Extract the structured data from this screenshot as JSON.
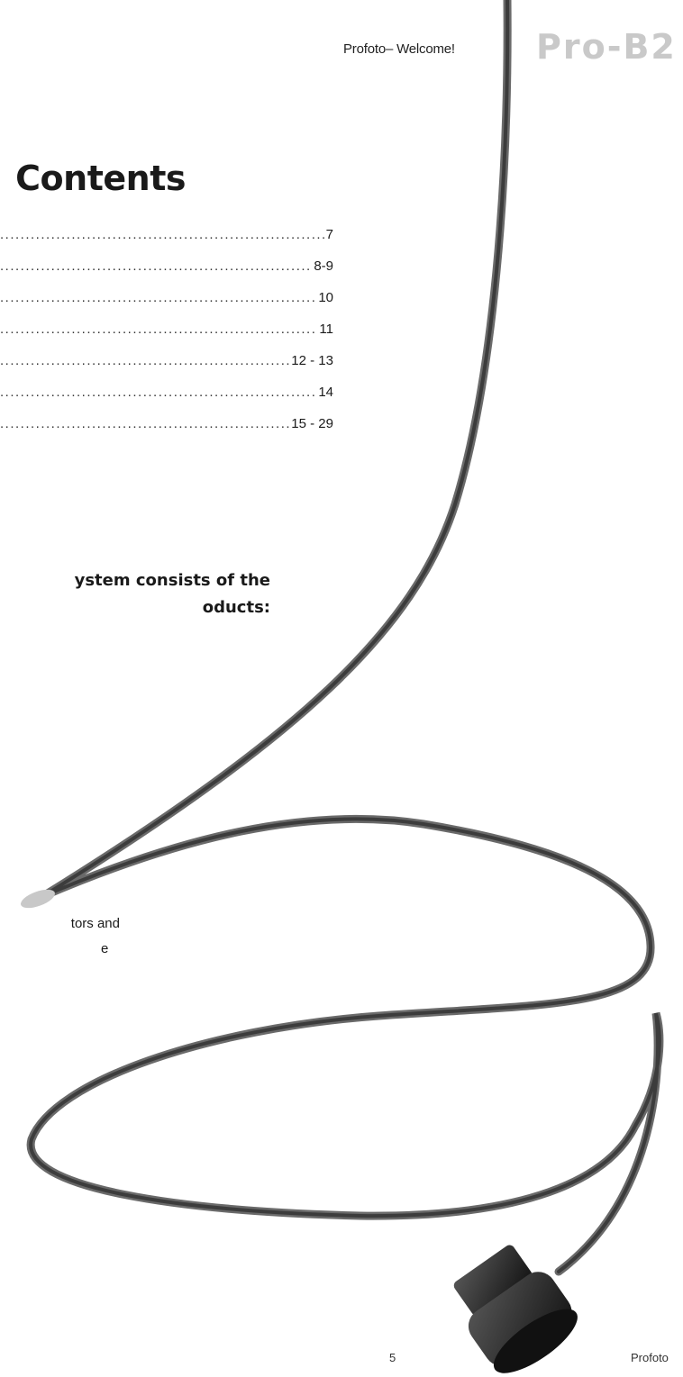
{
  "header": {
    "section": "Profoto– Welcome!",
    "brand": "Pro-B2"
  },
  "title": "Contents",
  "toc": [
    {
      "page": "7"
    },
    {
      "page": "8-9"
    },
    {
      "page": "10"
    },
    {
      "page": "11"
    },
    {
      "page": "12 - 13"
    },
    {
      "page": "14"
    },
    {
      "page": "15 - 29"
    }
  ],
  "system_text": {
    "line1": "ystem consists of the",
    "line2": "oducts:"
  },
  "accessory_text": {
    "line1": "tors and",
    "line2": "e"
  },
  "footer": {
    "page_number": "5",
    "brand": "Profoto"
  },
  "colors": {
    "cable": "#4a4a4a",
    "brand_logo": "#c9c9c9",
    "text": "#1a1a1a"
  },
  "image": {
    "subject": "sync-cable-icon"
  }
}
